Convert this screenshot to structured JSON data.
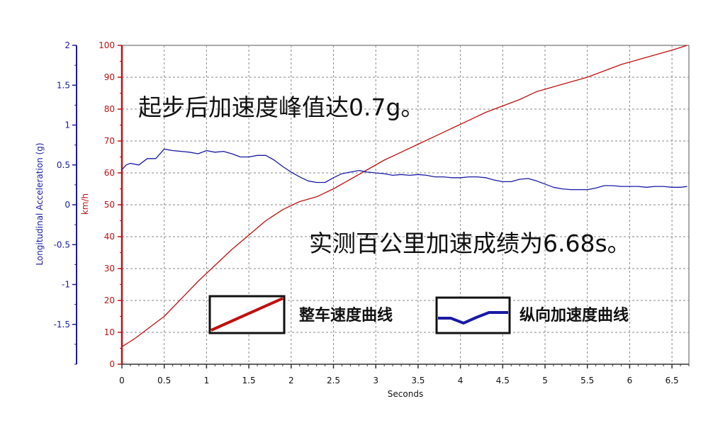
{
  "chart_data": {
    "type": "line",
    "xlabel": "Seconds",
    "x_ticks": [
      "0",
      "0.5",
      "1",
      "1.5",
      "2",
      "2.5",
      "3",
      "3.5",
      "4",
      "4.5",
      "5",
      "5.5",
      "6",
      "6.5"
    ],
    "xlim": [
      0,
      6.7
    ],
    "grid": true,
    "axes": {
      "left_outer": {
        "label": "Longitudinal Acceleration (g)",
        "ylim": [
          -2,
          2
        ],
        "ticks": [
          "2",
          "1.5",
          "1",
          "0.5",
          "0",
          "-0.5",
          "-1",
          "-1.5"
        ],
        "color": "#1a1aa6"
      },
      "left_inner": {
        "label": "km/h",
        "ylim": [
          0,
          100
        ],
        "ticks": [
          "100",
          "90",
          "80",
          "70",
          "60",
          "50",
          "40",
          "30",
          "20",
          "10",
          "0"
        ],
        "color": "#c01010"
      }
    },
    "series": [
      {
        "axis": "left_inner",
        "color": "#c01010",
        "x": [
          0,
          0.15,
          0.3,
          0.5,
          0.7,
          0.9,
          1.1,
          1.3,
          1.5,
          1.7,
          1.9,
          2.1,
          2.3,
          2.5,
          2.7,
          2.9,
          3.1,
          3.3,
          3.5,
          3.7,
          3.9,
          4.1,
          4.3,
          4.5,
          4.7,
          4.9,
          5.1,
          5.3,
          5.5,
          5.7,
          5.9,
          6.1,
          6.3,
          6.5,
          6.68
        ],
        "y": [
          5.5,
          8,
          11,
          15,
          20.5,
          26,
          31,
          36,
          40.5,
          45,
          48.5,
          51,
          52.5,
          55,
          58,
          61,
          64,
          66.5,
          69,
          71.5,
          74,
          76.5,
          79,
          81,
          83,
          85.5,
          87,
          88.5,
          90,
          92,
          94,
          95.5,
          97,
          98.5,
          100
        ]
      },
      {
        "axis": "left_outer",
        "color": "#1a1aa6",
        "x": [
          0,
          0.05,
          0.1,
          0.2,
          0.3,
          0.4,
          0.5,
          0.6,
          0.7,
          0.8,
          0.9,
          1.0,
          1.1,
          1.2,
          1.3,
          1.4,
          1.5,
          1.6,
          1.7,
          1.8,
          1.9,
          2.0,
          2.1,
          2.2,
          2.3,
          2.4,
          2.5,
          2.6,
          2.7,
          2.8,
          2.9,
          3.0,
          3.1,
          3.2,
          3.3,
          3.4,
          3.5,
          3.6,
          3.7,
          3.8,
          3.9,
          4.0,
          4.1,
          4.2,
          4.3,
          4.4,
          4.5,
          4.6,
          4.7,
          4.8,
          4.9,
          5.0,
          5.1,
          5.2,
          5.3,
          5.4,
          5.5,
          5.6,
          5.7,
          5.8,
          5.9,
          6.0,
          6.1,
          6.2,
          6.3,
          6.4,
          6.5,
          6.6,
          6.68
        ],
        "y": [
          0.44,
          0.5,
          0.52,
          0.5,
          0.58,
          0.58,
          0.7,
          0.68,
          0.67,
          0.66,
          0.64,
          0.68,
          0.66,
          0.67,
          0.64,
          0.6,
          0.6,
          0.62,
          0.62,
          0.56,
          0.48,
          0.41,
          0.35,
          0.3,
          0.28,
          0.28,
          0.34,
          0.39,
          0.41,
          0.43,
          0.41,
          0.4,
          0.39,
          0.37,
          0.38,
          0.37,
          0.38,
          0.37,
          0.35,
          0.35,
          0.34,
          0.34,
          0.35,
          0.35,
          0.34,
          0.31,
          0.29,
          0.29,
          0.32,
          0.33,
          0.3,
          0.26,
          0.22,
          0.2,
          0.19,
          0.19,
          0.19,
          0.21,
          0.24,
          0.24,
          0.23,
          0.23,
          0.23,
          0.22,
          0.23,
          0.23,
          0.22,
          0.22,
          0.23
        ]
      }
    ],
    "annotations": [
      {
        "text": "起步后加速度峰值达0.7g。"
      },
      {
        "text": "实测百公里加速成绩为6.68s。"
      }
    ],
    "legend": [
      {
        "label": "整车速度曲线",
        "color": "#c01010"
      },
      {
        "label": "纵向加速度曲线",
        "color": "#1a1aa6"
      }
    ]
  }
}
